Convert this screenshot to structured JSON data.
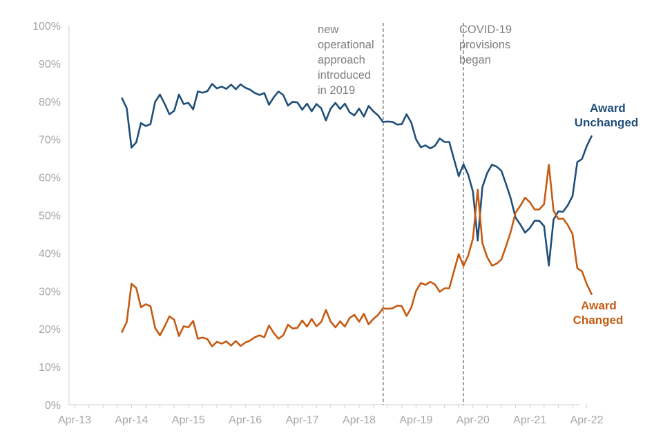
{
  "chart_data": {
    "type": "line",
    "title": "",
    "xlabel": "",
    "ylabel": "",
    "ylim": [
      0,
      100
    ],
    "y_ticks": [
      "0%",
      "10%",
      "20%",
      "30%",
      "40%",
      "50%",
      "60%",
      "70%",
      "80%",
      "90%",
      "100%"
    ],
    "x_ticks": [
      "Apr-13",
      "Apr-14",
      "Apr-15",
      "Apr-16",
      "Apr-17",
      "Apr-18",
      "Apr-19",
      "Apr-20",
      "Apr-21",
      "Apr-22"
    ],
    "x_start": "Apr-13",
    "series": [
      {
        "name": "Award Unchanged",
        "label_line1": "Award",
        "label_line2": "Unchanged",
        "color": "#1f4e79",
        "start_month": 10,
        "values": [
          80.8,
          78.2,
          67.8,
          69.2,
          74.3,
          73.5,
          74.0,
          79.9,
          81.8,
          79.3,
          76.6,
          77.5,
          81.8,
          79.3,
          79.6,
          77.9,
          82.6,
          82.3,
          82.7,
          84.6,
          83.4,
          83.9,
          83.3,
          84.4,
          83.2,
          84.5,
          83.6,
          83.1,
          82.2,
          81.7,
          82.2,
          79.1,
          81.1,
          82.6,
          81.7,
          78.9,
          79.9,
          79.7,
          77.8,
          79.4,
          77.4,
          79.3,
          78.2,
          75.0,
          78.1,
          79.6,
          78.0,
          79.4,
          77.1,
          76.3,
          78.1,
          76.0,
          78.8,
          77.4,
          76.3,
          74.6,
          74.7,
          74.6,
          73.9,
          74.0,
          76.6,
          74.4,
          70.0,
          67.9,
          68.4,
          67.6,
          68.3,
          70.2,
          69.3,
          69.3,
          64.8,
          60.3,
          63.4,
          60.7,
          56.2,
          43.3,
          57.4,
          61.1,
          63.3,
          62.8,
          61.7,
          58.1,
          54.3,
          49.3,
          47.5,
          45.4,
          46.6,
          48.5,
          48.5,
          47.1,
          36.7,
          48.8,
          51.0,
          50.9,
          52.6,
          55.0,
          64.0,
          64.8,
          68.2,
          70.8
        ]
      },
      {
        "name": "Award Changed",
        "label_line1": "Award",
        "label_line2": "Changed",
        "color": "#c55a11",
        "start_month": 10,
        "values": [
          19.2,
          21.8,
          31.9,
          30.8,
          25.7,
          26.5,
          26.0,
          20.2,
          18.3,
          20.7,
          23.3,
          22.4,
          18.1,
          20.7,
          20.4,
          22.1,
          17.4,
          17.7,
          17.3,
          15.4,
          16.6,
          16.1,
          16.7,
          15.6,
          16.8,
          15.5,
          16.4,
          16.9,
          17.8,
          18.3,
          17.8,
          20.9,
          18.9,
          17.4,
          18.3,
          21.1,
          20.1,
          20.3,
          22.2,
          20.6,
          22.6,
          20.7,
          21.8,
          25.0,
          21.9,
          20.4,
          22.0,
          20.6,
          22.9,
          23.7,
          21.9,
          24.0,
          21.2,
          22.6,
          23.7,
          25.4,
          25.3,
          25.4,
          26.1,
          26.0,
          23.4,
          25.6,
          30.0,
          32.1,
          31.6,
          32.4,
          31.7,
          29.8,
          30.7,
          30.7,
          35.2,
          39.7,
          36.6,
          39.3,
          43.8,
          56.7,
          42.6,
          38.9,
          36.7,
          37.2,
          38.3,
          41.9,
          45.7,
          50.7,
          52.5,
          54.6,
          53.4,
          51.5,
          51.5,
          52.9,
          63.3,
          51.2,
          49.0,
          49.1,
          47.4,
          45.0,
          36.0,
          35.2,
          31.8,
          29.2
        ]
      }
    ],
    "reference_lines": [
      {
        "month": 65,
        "text": [
          "new",
          "operational",
          "approach",
          "introduced",
          "in 2019"
        ]
      },
      {
        "month": 82,
        "text": [
          "COVID-19",
          "provisions",
          "began"
        ]
      }
    ]
  }
}
